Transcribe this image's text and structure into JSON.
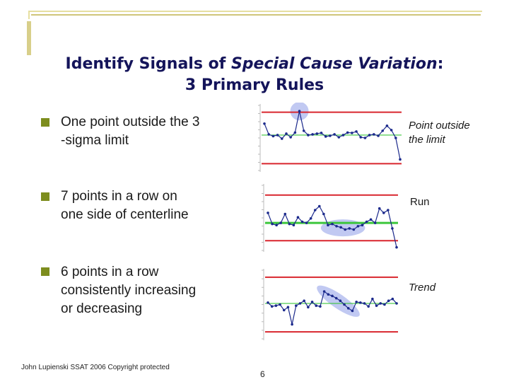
{
  "slide": {
    "title_prefix": "Identify Signals of ",
    "title_em1": "Special Cause",
    "title_em2": " Variation",
    "title_suffix": ":",
    "subtitle": "3 Primary Rules",
    "rules": [
      {
        "lines": [
          "One point outside the 3",
          "-sigma limit"
        ],
        "note": "Point outside the limit"
      },
      {
        "lines": [
          "7 points in a row on",
          "one side of centerline"
        ],
        "note": "Run"
      },
      {
        "lines": [
          "6 points in a row",
          "consistently increasing",
          "or decreasing"
        ],
        "note": "Trend"
      }
    ],
    "footer": "John Lupienski SSAT 2006 Copyright protected",
    "page_number": "6"
  },
  "colors": {
    "title": "#14145a",
    "bullet": "#7d8d1e",
    "control_limit": "#d9262e",
    "centerline": "#3cc63c",
    "series": "#1c2a8c",
    "highlight": "#b6bff0"
  },
  "chart_data": [
    {
      "type": "line",
      "values": [
        60,
        30,
        25,
        28,
        18,
        32,
        22,
        35,
        95,
        40,
        28,
        30,
        32,
        34,
        24,
        26,
        30,
        22,
        28,
        35,
        34,
        38,
        22,
        20,
        28,
        30,
        26,
        40,
        54,
        42,
        20,
        -40
      ],
      "centerline": 28,
      "control_limits": [
        -52,
        92
      ],
      "highlight": "Point outside the limit"
    },
    {
      "type": "line",
      "values": [
        40,
        20,
        18,
        22,
        38,
        20,
        18,
        32,
        24,
        22,
        30,
        45,
        52,
        38,
        18,
        20,
        16,
        14,
        10,
        12,
        10,
        16,
        18,
        24,
        28,
        22,
        48,
        40,
        45,
        12,
        -22
      ],
      "centerline": 22,
      "control_limits": [
        -10,
        72
      ],
      "highlight": "Run"
    },
    {
      "type": "line",
      "values": [
        30,
        20,
        22,
        25,
        10,
        18,
        -28,
        22,
        28,
        35,
        18,
        32,
        22,
        20,
        60,
        52,
        48,
        42,
        35,
        25,
        15,
        8,
        32,
        30,
        28,
        20,
        40,
        22,
        28,
        25,
        35,
        40,
        28
      ],
      "centerline": 28,
      "control_limits": [
        -48,
        98
      ],
      "highlight": "Trend"
    }
  ]
}
